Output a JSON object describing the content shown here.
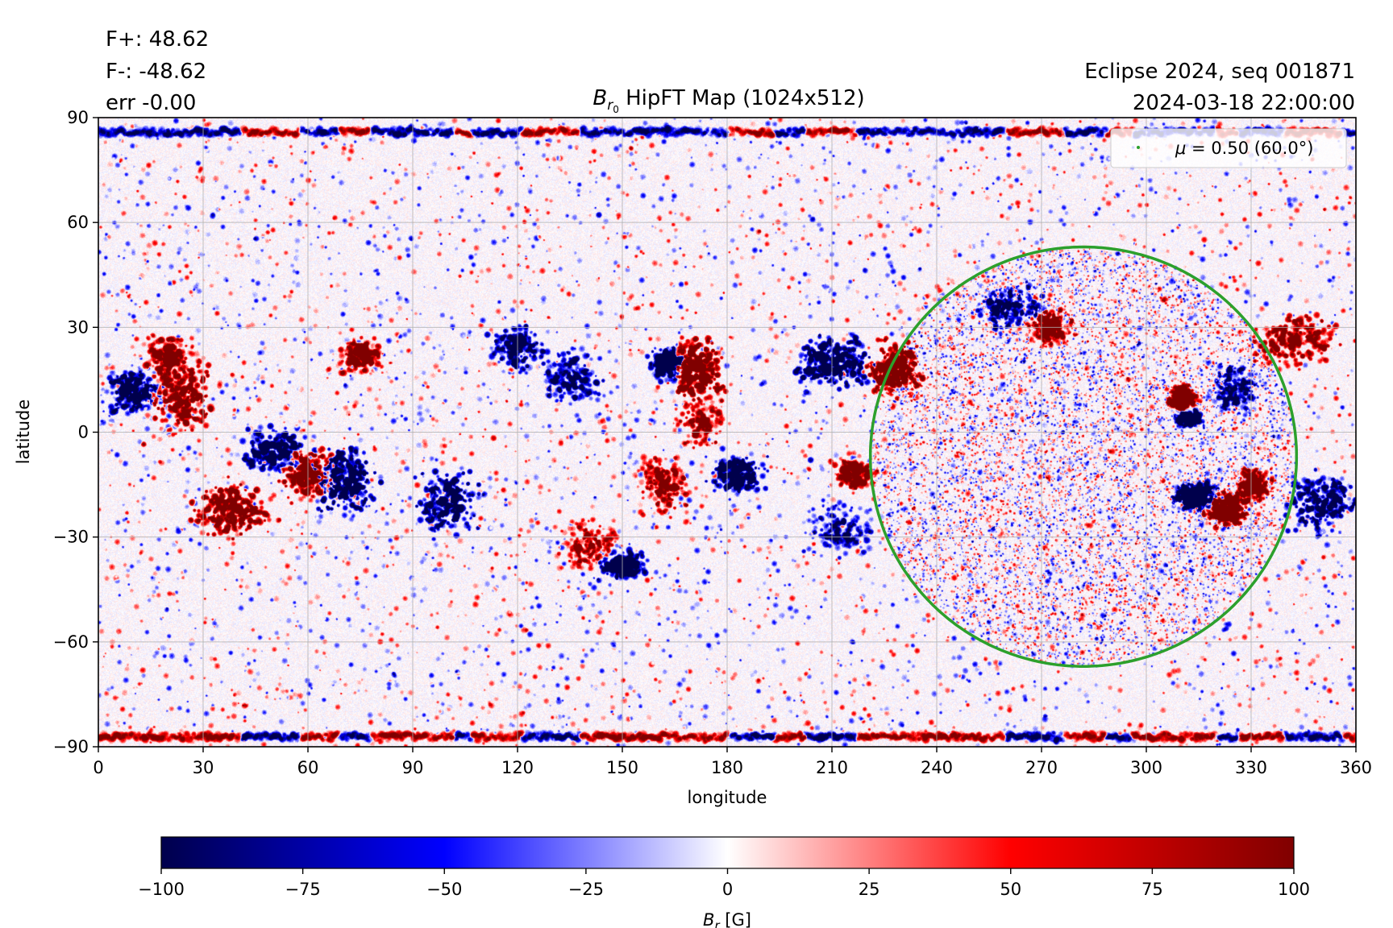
{
  "annotations": {
    "flux_pos": "F+: 48.62",
    "flux_neg": "F-: -48.62",
    "err": "err -0.00",
    "eclipse": "Eclipse 2024, seq 001871",
    "datetime": "2024-03-18 22:00:00"
  },
  "chart_data": {
    "type": "heatmap",
    "title_main": "B",
    "title_sub": "r",
    "title_subsub": "0",
    "title_rest": " HipFT Map (1024x512)",
    "xlabel": "longitude",
    "ylabel": "latitude",
    "xlim": [
      0,
      360
    ],
    "ylim": [
      -90,
      90
    ],
    "xticks": [
      0,
      30,
      60,
      90,
      120,
      150,
      180,
      210,
      240,
      270,
      300,
      330,
      360
    ],
    "yticks": [
      -90,
      -60,
      -30,
      0,
      30,
      60,
      90
    ],
    "grid": true,
    "legend": {
      "label_mu": "μ",
      "label_rest": " = 0.50 (60.0°)",
      "placement": "upper right",
      "color": "#2ca02c"
    },
    "contour": {
      "name": "μ = 0.50 (60.0°)",
      "color": "#2ca02c",
      "center_lon": 282,
      "center_lat": -7,
      "lon_halfwidth": 61,
      "top_lat": 53,
      "bottom_lat": -67
    },
    "active_regions": [
      {
        "lon": 10,
        "lat": 12,
        "sign": -1,
        "strength": 0.8,
        "lon_spread": 6,
        "lat_spread": 5
      },
      {
        "lon": 24,
        "lat": 10,
        "sign": 1,
        "strength": 0.9,
        "lon_spread": 7,
        "lat_spread": 8
      },
      {
        "lon": 20,
        "lat": 22,
        "sign": 1,
        "strength": 0.7,
        "lon_spread": 6,
        "lat_spread": 5
      },
      {
        "lon": 38,
        "lat": -22,
        "sign": 1,
        "strength": 0.95,
        "lon_spread": 8,
        "lat_spread": 6
      },
      {
        "lon": 50,
        "lat": -5,
        "sign": -1,
        "strength": 0.8,
        "lon_spread": 7,
        "lat_spread": 5
      },
      {
        "lon": 60,
        "lat": -12,
        "sign": 1,
        "strength": 0.85,
        "lon_spread": 6,
        "lat_spread": 6
      },
      {
        "lon": 70,
        "lat": -14,
        "sign": -1,
        "strength": 1.0,
        "lon_spread": 7,
        "lat_spread": 7
      },
      {
        "lon": 75,
        "lat": 22,
        "sign": 1,
        "strength": 0.7,
        "lon_spread": 5,
        "lat_spread": 4
      },
      {
        "lon": 100,
        "lat": -20,
        "sign": -1,
        "strength": 0.85,
        "lon_spread": 7,
        "lat_spread": 8
      },
      {
        "lon": 120,
        "lat": 24,
        "sign": -1,
        "strength": 0.7,
        "lon_spread": 6,
        "lat_spread": 5
      },
      {
        "lon": 135,
        "lat": 16,
        "sign": -1,
        "strength": 0.7,
        "lon_spread": 7,
        "lat_spread": 6
      },
      {
        "lon": 140,
        "lat": -32,
        "sign": 1,
        "strength": 0.6,
        "lon_spread": 7,
        "lat_spread": 6
      },
      {
        "lon": 150,
        "lat": -38,
        "sign": -1,
        "strength": 0.8,
        "lon_spread": 5,
        "lat_spread": 3
      },
      {
        "lon": 163,
        "lat": 20,
        "sign": -1,
        "strength": 0.85,
        "lon_spread": 4,
        "lat_spread": 4
      },
      {
        "lon": 171,
        "lat": 18,
        "sign": 1,
        "strength": 1.0,
        "lon_spread": 6,
        "lat_spread": 7
      },
      {
        "lon": 172,
        "lat": 3,
        "sign": 1,
        "strength": 0.6,
        "lon_spread": 5,
        "lat_spread": 6
      },
      {
        "lon": 162,
        "lat": -15,
        "sign": 1,
        "strength": 0.7,
        "lon_spread": 6,
        "lat_spread": 7
      },
      {
        "lon": 183,
        "lat": -12,
        "sign": -1,
        "strength": 0.85,
        "lon_spread": 6,
        "lat_spread": 5
      },
      {
        "lon": 210,
        "lat": 20,
        "sign": -1,
        "strength": 1.0,
        "lon_spread": 9,
        "lat_spread": 6
      },
      {
        "lon": 228,
        "lat": 18,
        "sign": 1,
        "strength": 1.0,
        "lon_spread": 6,
        "lat_spread": 6
      },
      {
        "lon": 212,
        "lat": -28,
        "sign": -1,
        "strength": 0.6,
        "lon_spread": 8,
        "lat_spread": 6
      },
      {
        "lon": 216,
        "lat": -12,
        "sign": 1,
        "strength": 0.7,
        "lon_spread": 5,
        "lat_spread": 4
      },
      {
        "lon": 260,
        "lat": 36,
        "sign": -1,
        "strength": 0.7,
        "lon_spread": 8,
        "lat_spread": 5
      },
      {
        "lon": 272,
        "lat": 30,
        "sign": 1,
        "strength": 0.7,
        "lon_spread": 5,
        "lat_spread": 4
      },
      {
        "lon": 310,
        "lat": 10,
        "sign": 1,
        "strength": 0.8,
        "lon_spread": 3,
        "lat_spread": 3
      },
      {
        "lon": 312,
        "lat": 4,
        "sign": -1,
        "strength": 0.7,
        "lon_spread": 3,
        "lat_spread": 2
      },
      {
        "lon": 314,
        "lat": -18,
        "sign": -1,
        "strength": 0.9,
        "lon_spread": 5,
        "lat_spread": 3
      },
      {
        "lon": 323,
        "lat": -22,
        "sign": 1,
        "strength": 0.95,
        "lon_spread": 5,
        "lat_spread": 4
      },
      {
        "lon": 330,
        "lat": -15,
        "sign": 1,
        "strength": 0.7,
        "lon_spread": 4,
        "lat_spread": 4
      },
      {
        "lon": 342,
        "lat": 26,
        "sign": 1,
        "strength": 0.8,
        "lon_spread": 10,
        "lat_spread": 6
      },
      {
        "lon": 350,
        "lat": -20,
        "sign": -1,
        "strength": 0.85,
        "lon_spread": 8,
        "lat_spread": 7
      },
      {
        "lon": 325,
        "lat": 12,
        "sign": -1,
        "strength": 0.6,
        "lon_spread": 5,
        "lat_spread": 6
      }
    ],
    "polar_bands": [
      {
        "lat": 86,
        "sign": -1,
        "strength": 0.8
      },
      {
        "lat": -87,
        "sign": 1,
        "strength": 0.9
      }
    ]
  },
  "colorbar": {
    "ticks": [
      -100,
      -75,
      -50,
      -25,
      0,
      25,
      50,
      75,
      100
    ],
    "vmin": -100,
    "vmax": 100,
    "label_main": "B",
    "label_sub": "r",
    "label_rest": " [G]",
    "colormap": "seismic",
    "color_neg_end": "#00004c",
    "color_neg_mid": "#0000ff",
    "color_zero": "#ffffff",
    "color_pos_mid": "#ff0000",
    "color_pos_end": "#800000"
  },
  "colors": {
    "grid": "#b0b0b0",
    "contour": "#2ca02c"
  }
}
